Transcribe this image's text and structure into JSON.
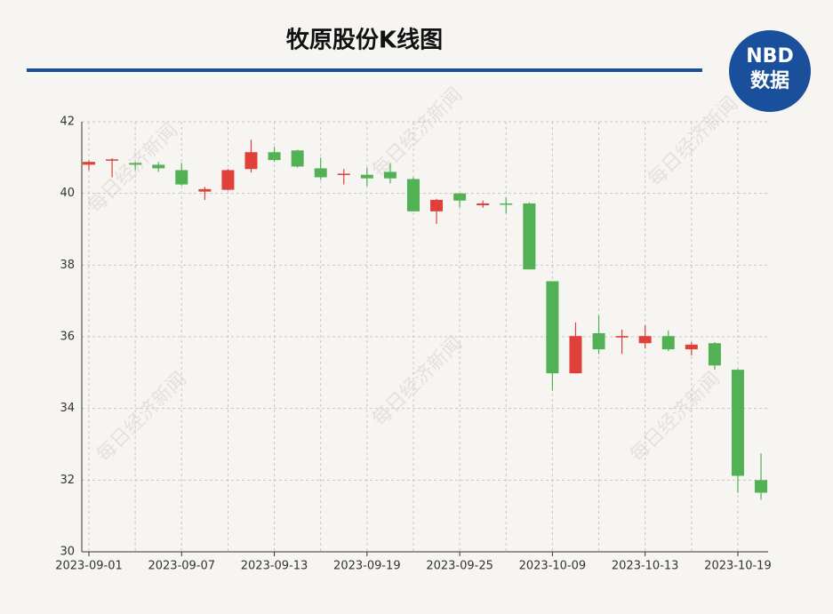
{
  "title": "牧原股份K线图",
  "logo": {
    "top": "NBD",
    "bottom": "数据"
  },
  "watermark": "每日经济新闻",
  "chart_data": {
    "type": "candlestick",
    "categories": [
      "2023-09-01",
      null,
      null,
      null,
      "2023-09-07",
      null,
      null,
      null,
      "2023-09-13",
      null,
      null,
      null,
      "2023-09-19",
      null,
      null,
      null,
      "2023-09-25",
      null,
      null,
      null,
      "2023-10-09",
      null,
      null,
      null,
      "2023-10-13",
      null,
      null,
      null,
      "2023-10-19",
      null
    ],
    "open": [
      40.8,
      40.92,
      40.85,
      40.8,
      40.65,
      40.05,
      40.1,
      40.68,
      41.15,
      41.2,
      40.7,
      40.52,
      40.52,
      40.6,
      40.4,
      39.5,
      40.0,
      39.67,
      39.72,
      39.72,
      37.55,
      34.98,
      36.1,
      35.98,
      35.82,
      36.02,
      35.65,
      35.82,
      35.08,
      32.0
    ],
    "high": [
      40.92,
      40.98,
      40.88,
      40.88,
      40.85,
      40.18,
      40.68,
      41.5,
      41.3,
      41.22,
      41.0,
      40.68,
      40.72,
      40.85,
      40.45,
      39.85,
      40.0,
      39.8,
      39.88,
      39.75,
      37.55,
      36.4,
      36.6,
      36.2,
      36.32,
      36.18,
      35.85,
      35.85,
      35.1,
      32.75
    ],
    "low": [
      40.65,
      40.45,
      40.65,
      40.6,
      40.22,
      39.82,
      40.08,
      40.58,
      40.88,
      40.72,
      40.38,
      40.25,
      40.2,
      40.28,
      39.5,
      39.15,
      39.62,
      39.6,
      39.45,
      37.88,
      34.5,
      34.98,
      35.52,
      35.52,
      35.67,
      35.6,
      35.48,
      35.08,
      31.65,
      31.45
    ],
    "close": [
      40.88,
      40.95,
      40.8,
      40.7,
      40.25,
      40.12,
      40.65,
      41.15,
      40.93,
      40.75,
      40.45,
      40.55,
      40.42,
      40.42,
      39.5,
      39.82,
      39.8,
      39.72,
      39.7,
      37.88,
      34.98,
      36.02,
      35.65,
      36.02,
      36.02,
      35.65,
      35.78,
      35.2,
      32.12,
      31.65
    ],
    "up_color": "#e0403a",
    "down_color": "#52b154",
    "ylim": [
      30,
      42
    ],
    "yticks": [
      30,
      32,
      34,
      36,
      38,
      40,
      42
    ],
    "grid": true
  }
}
